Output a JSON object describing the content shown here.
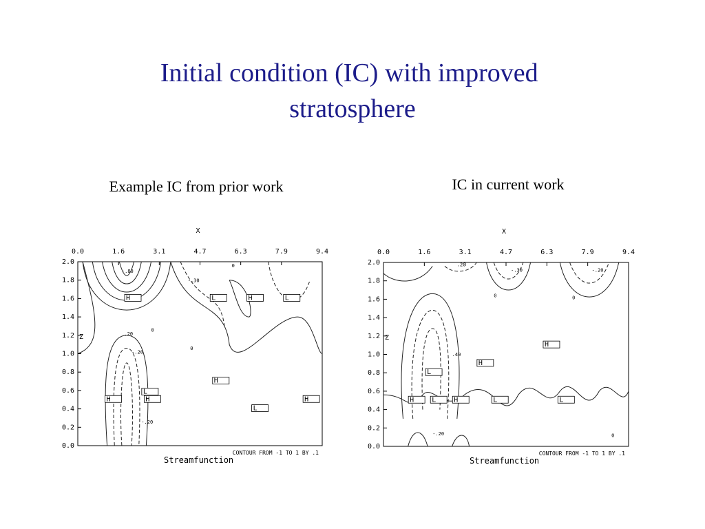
{
  "title": "Initial condition (IC) with improved stratosphere",
  "panels": [
    {
      "caption": "Example IC from prior work",
      "x_label": "X",
      "y_label": "Z",
      "xticks": [
        "0.0",
        "1.6",
        "3.1",
        "4.7",
        "6.3",
        "7.9",
        "9.4"
      ],
      "yticks": [
        "2.0",
        "1.8",
        "1.6",
        "1.4",
        "1.2",
        "1.0",
        "0.8",
        "0.6",
        "0.4",
        "0.2",
        "0.0"
      ],
      "contour_labels": [
        "-.80",
        "-.30",
        ".20",
        "-.20",
        "0",
        "-.20",
        "0",
        "0"
      ],
      "markers": [
        "H",
        "L",
        "H",
        "L",
        "H",
        "L",
        "H",
        "H",
        "L",
        "H"
      ],
      "note": "CONTOUR FROM -1 TO 1 BY .1",
      "footer": "Streamfunction"
    },
    {
      "caption": "IC in current work",
      "x_label": "X",
      "y_label": "Z",
      "xticks": [
        "0.0",
        "1.6",
        "3.1",
        "4.7",
        "6.3",
        "7.9",
        "9.4"
      ],
      "yticks": [
        "2.0",
        "1.8",
        "1.6",
        "1.4",
        "1.2",
        "1.0",
        "0.8",
        "0.6",
        "0.4",
        "0.2",
        "0.0"
      ],
      "contour_labels": [
        ".20",
        "-.30",
        "-.20",
        "0",
        "0",
        ".40",
        "-.20",
        "0"
      ],
      "markers": [
        "H",
        "L",
        "H",
        "H",
        "L",
        "H",
        "L",
        "L"
      ],
      "note": "CONTOUR FROM -1 TO 1 BY .1",
      "footer": "Streamfunction"
    }
  ]
}
